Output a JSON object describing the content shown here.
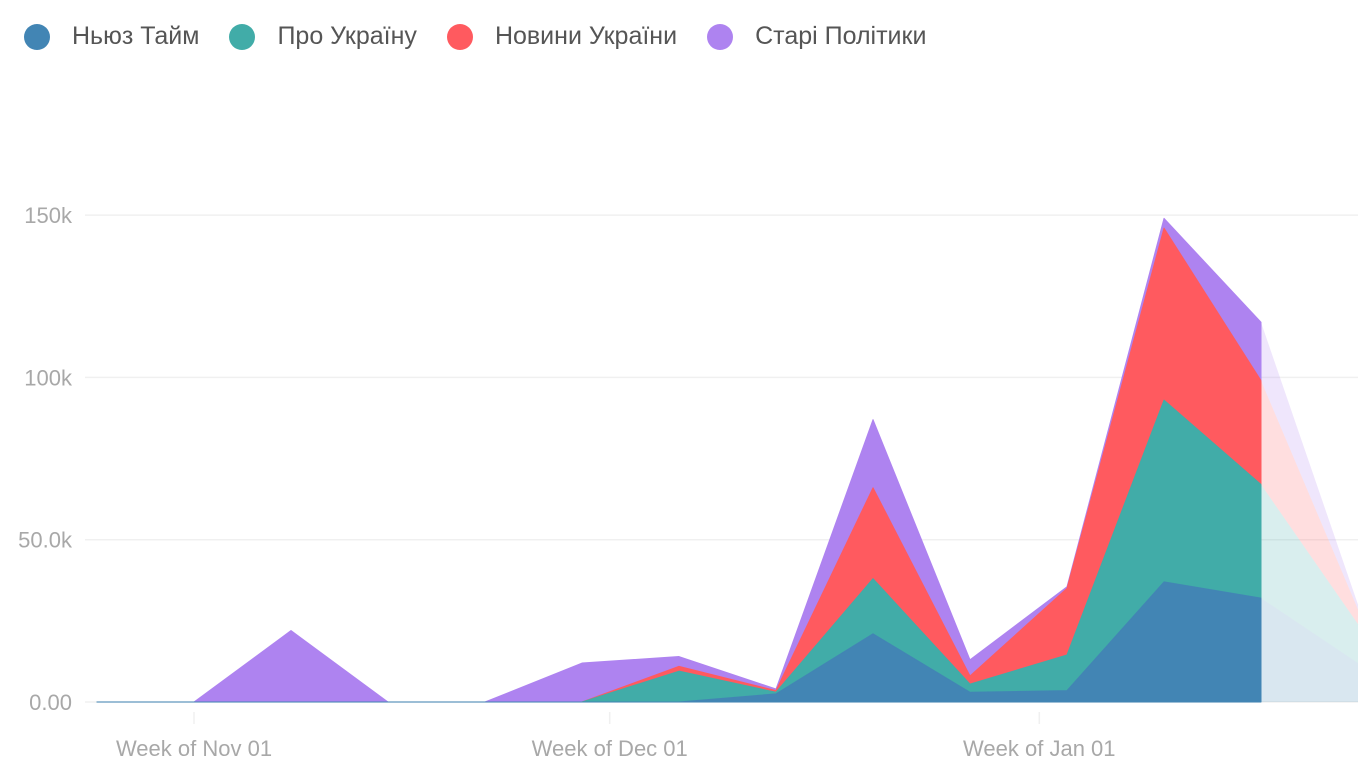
{
  "chart_data": {
    "type": "area",
    "stacked": true,
    "title": "",
    "xlabel": "",
    "ylabel": "",
    "ylim": [
      0,
      175000
    ],
    "y_ticks": [
      0,
      50000,
      100000,
      150000
    ],
    "y_tick_labels": [
      "0.00",
      "50.0k",
      "100k",
      "150k"
    ],
    "x_ticks": [
      "Week of Nov 01",
      "Week of Dec 01",
      "Week of Jan 01"
    ],
    "x": [
      "2021-10-25",
      "2021-11-01",
      "2021-11-08",
      "2021-11-15",
      "2021-11-22",
      "2021-11-29",
      "2021-12-06",
      "2021-12-13",
      "2021-12-20",
      "2021-12-27",
      "2022-01-03",
      "2022-01-10",
      "2022-01-17",
      "2022-01-24"
    ],
    "incomplete_last_period": true,
    "grid": true,
    "legend": "top-left",
    "series": [
      {
        "name": "Ньюз Тайм",
        "color": "#4285B4",
        "values": [
          0,
          0,
          0,
          0,
          0,
          0,
          0,
          2500,
          21000,
          3000,
          3500,
          37000,
          32000,
          12000
        ]
      },
      {
        "name": "Про Україну",
        "color": "#41ACA8",
        "values": [
          0,
          0,
          0,
          0,
          0,
          0,
          9500,
          500,
          17000,
          2500,
          11000,
          56000,
          35000,
          12000
        ]
      },
      {
        "name": "Новини України",
        "color": "#FF5A5F",
        "values": [
          0,
          0,
          0,
          0,
          0,
          0,
          1500,
          500,
          28000,
          2500,
          20500,
          53000,
          32000,
          4500
        ]
      },
      {
        "name": "Старі Політики",
        "color": "#AE83F0",
        "values": [
          0,
          0,
          22000,
          0,
          0,
          12000,
          3000,
          500,
          21000,
          5000,
          500,
          3000,
          18000,
          1500
        ]
      }
    ]
  }
}
